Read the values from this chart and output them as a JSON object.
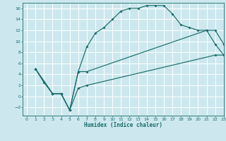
{
  "title": "",
  "xlabel": "Humidex (Indice chaleur)",
  "xlim": [
    -0.5,
    23
  ],
  "ylim": [
    -3.5,
    17
  ],
  "xticks": [
    0,
    1,
    2,
    3,
    4,
    5,
    6,
    7,
    8,
    9,
    10,
    11,
    12,
    13,
    14,
    15,
    16,
    17,
    18,
    19,
    20,
    21,
    22,
    23
  ],
  "yticks": [
    -2,
    0,
    2,
    4,
    6,
    8,
    10,
    12,
    14,
    16
  ],
  "bg_color": "#cce8ee",
  "line_color": "#1a6b6b",
  "grid_color": "#ffffff",
  "line1_x": [
    1,
    2,
    3,
    4,
    5,
    6,
    7,
    8,
    9,
    10,
    11,
    12,
    13,
    14,
    15,
    16,
    17,
    18,
    19,
    20,
    21,
    22,
    23
  ],
  "line1_y": [
    5,
    2.5,
    0.5,
    0.5,
    -2.5,
    4.5,
    9,
    11.5,
    12.5,
    14,
    15.5,
    16,
    16,
    16.5,
    16.5,
    16.5,
    15,
    13,
    12.5,
    12,
    12,
    9.5,
    7.5
  ],
  "line2_x": [
    1,
    3,
    4,
    5,
    6,
    7,
    21,
    22,
    23
  ],
  "line2_y": [
    5,
    0.5,
    0.5,
    -2.5,
    4.5,
    4.5,
    12,
    12,
    9.5
  ],
  "line3_x": [
    1,
    3,
    4,
    5,
    6,
    7,
    22,
    23
  ],
  "line3_y": [
    5,
    0.5,
    0.5,
    -2.5,
    1.5,
    2,
    7.5,
    7.5
  ]
}
